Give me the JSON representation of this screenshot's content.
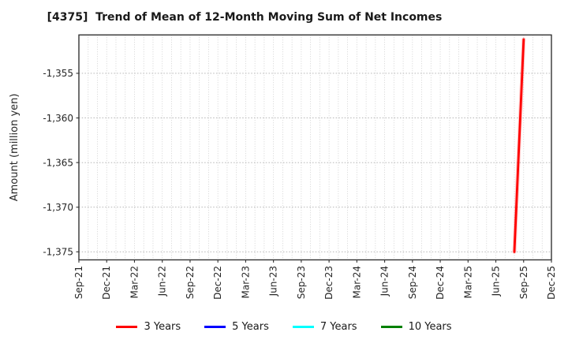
{
  "chart_data": {
    "type": "line",
    "title": "[4375]  Trend of Mean of 12-Month Moving Sum of Net Incomes",
    "xlabel": "",
    "ylabel": "Amount (million yen)",
    "x_start": "Sep-21",
    "x_end": "Dec-25",
    "x_tick_labels": [
      "Sep-21",
      "Dec-21",
      "Mar-22",
      "Jun-22",
      "Sep-22",
      "Dec-22",
      "Mar-23",
      "Jun-23",
      "Sep-23",
      "Dec-23",
      "Mar-24",
      "Jun-24",
      "Sep-24",
      "Dec-24",
      "Mar-25",
      "Jun-25",
      "Sep-25",
      "Dec-25"
    ],
    "yticks": [
      {
        "value": -1355,
        "label": "-1,355"
      },
      {
        "value": -1360,
        "label": "-1,360"
      },
      {
        "value": -1365,
        "label": "-1,365"
      },
      {
        "value": -1370,
        "label": "-1,370"
      },
      {
        "value": -1375,
        "label": "-1,375"
      }
    ],
    "ylim": [
      -1375.9,
      -1350.7
    ],
    "grid": true,
    "legend_position": "bottom",
    "series": [
      {
        "name": "3 Years",
        "color": "#ff0000",
        "points": [
          {
            "x": "Aug-25",
            "y": -1375.0
          },
          {
            "x": "Sep-25",
            "y": -1351.2
          }
        ]
      },
      {
        "name": "5 Years",
        "color": "#0000ff",
        "points": []
      },
      {
        "name": "7 Years",
        "color": "#00ffff",
        "points": []
      },
      {
        "name": "10 Years",
        "color": "#008000",
        "points": []
      }
    ],
    "colors": {
      "frame": "#333333",
      "grid_vertical": "#c9c9c9",
      "grid_horizontal": "#ababab",
      "tick_label": "#262626"
    }
  }
}
